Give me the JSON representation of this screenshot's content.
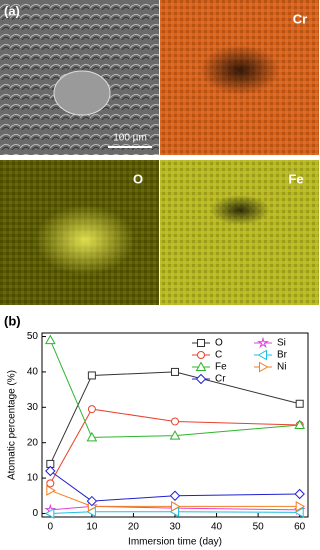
{
  "panel_a": {
    "label": "(a)",
    "maps": [
      "Cr",
      "O",
      "Fe"
    ],
    "scale_bar": "100 µm"
  },
  "chart_data": {
    "type": "line",
    "label": "(b)",
    "x_label": "Immersion time (day)",
    "y_label": "Atomatic percentage (%)",
    "x": [
      0,
      10,
      30,
      60
    ],
    "xlim": [
      -2,
      62
    ],
    "xticks": [
      0,
      10,
      20,
      30,
      40,
      50,
      60
    ],
    "ylim": [
      -1,
      51
    ],
    "yticks": [
      0,
      10,
      20,
      30,
      40,
      50
    ],
    "legend": "upper right",
    "series": [
      {
        "name": "O",
        "color": "#333333",
        "marker": "square",
        "values": [
          14,
          39,
          40,
          31
        ]
      },
      {
        "name": "Si",
        "color": "#e040e0",
        "marker": "star",
        "values": [
          1,
          2,
          1.5,
          1
        ]
      },
      {
        "name": "C",
        "color": "#e8412c",
        "marker": "circle",
        "values": [
          8.5,
          29.5,
          26,
          25
        ]
      },
      {
        "name": "Br",
        "color": "#20c0e0",
        "marker": "left",
        "values": [
          0,
          0.5,
          0.5,
          0.3
        ]
      },
      {
        "name": "Fe",
        "color": "#2db52d",
        "marker": "up",
        "values": [
          49,
          21.5,
          22,
          25
        ]
      },
      {
        "name": "Ni",
        "color": "#f08020",
        "marker": "right",
        "values": [
          6.5,
          2,
          2,
          2
        ]
      },
      {
        "name": "Cr",
        "color": "#2020d0",
        "marker": "diamond",
        "values": [
          12,
          3.5,
          5,
          5.5
        ]
      }
    ]
  }
}
